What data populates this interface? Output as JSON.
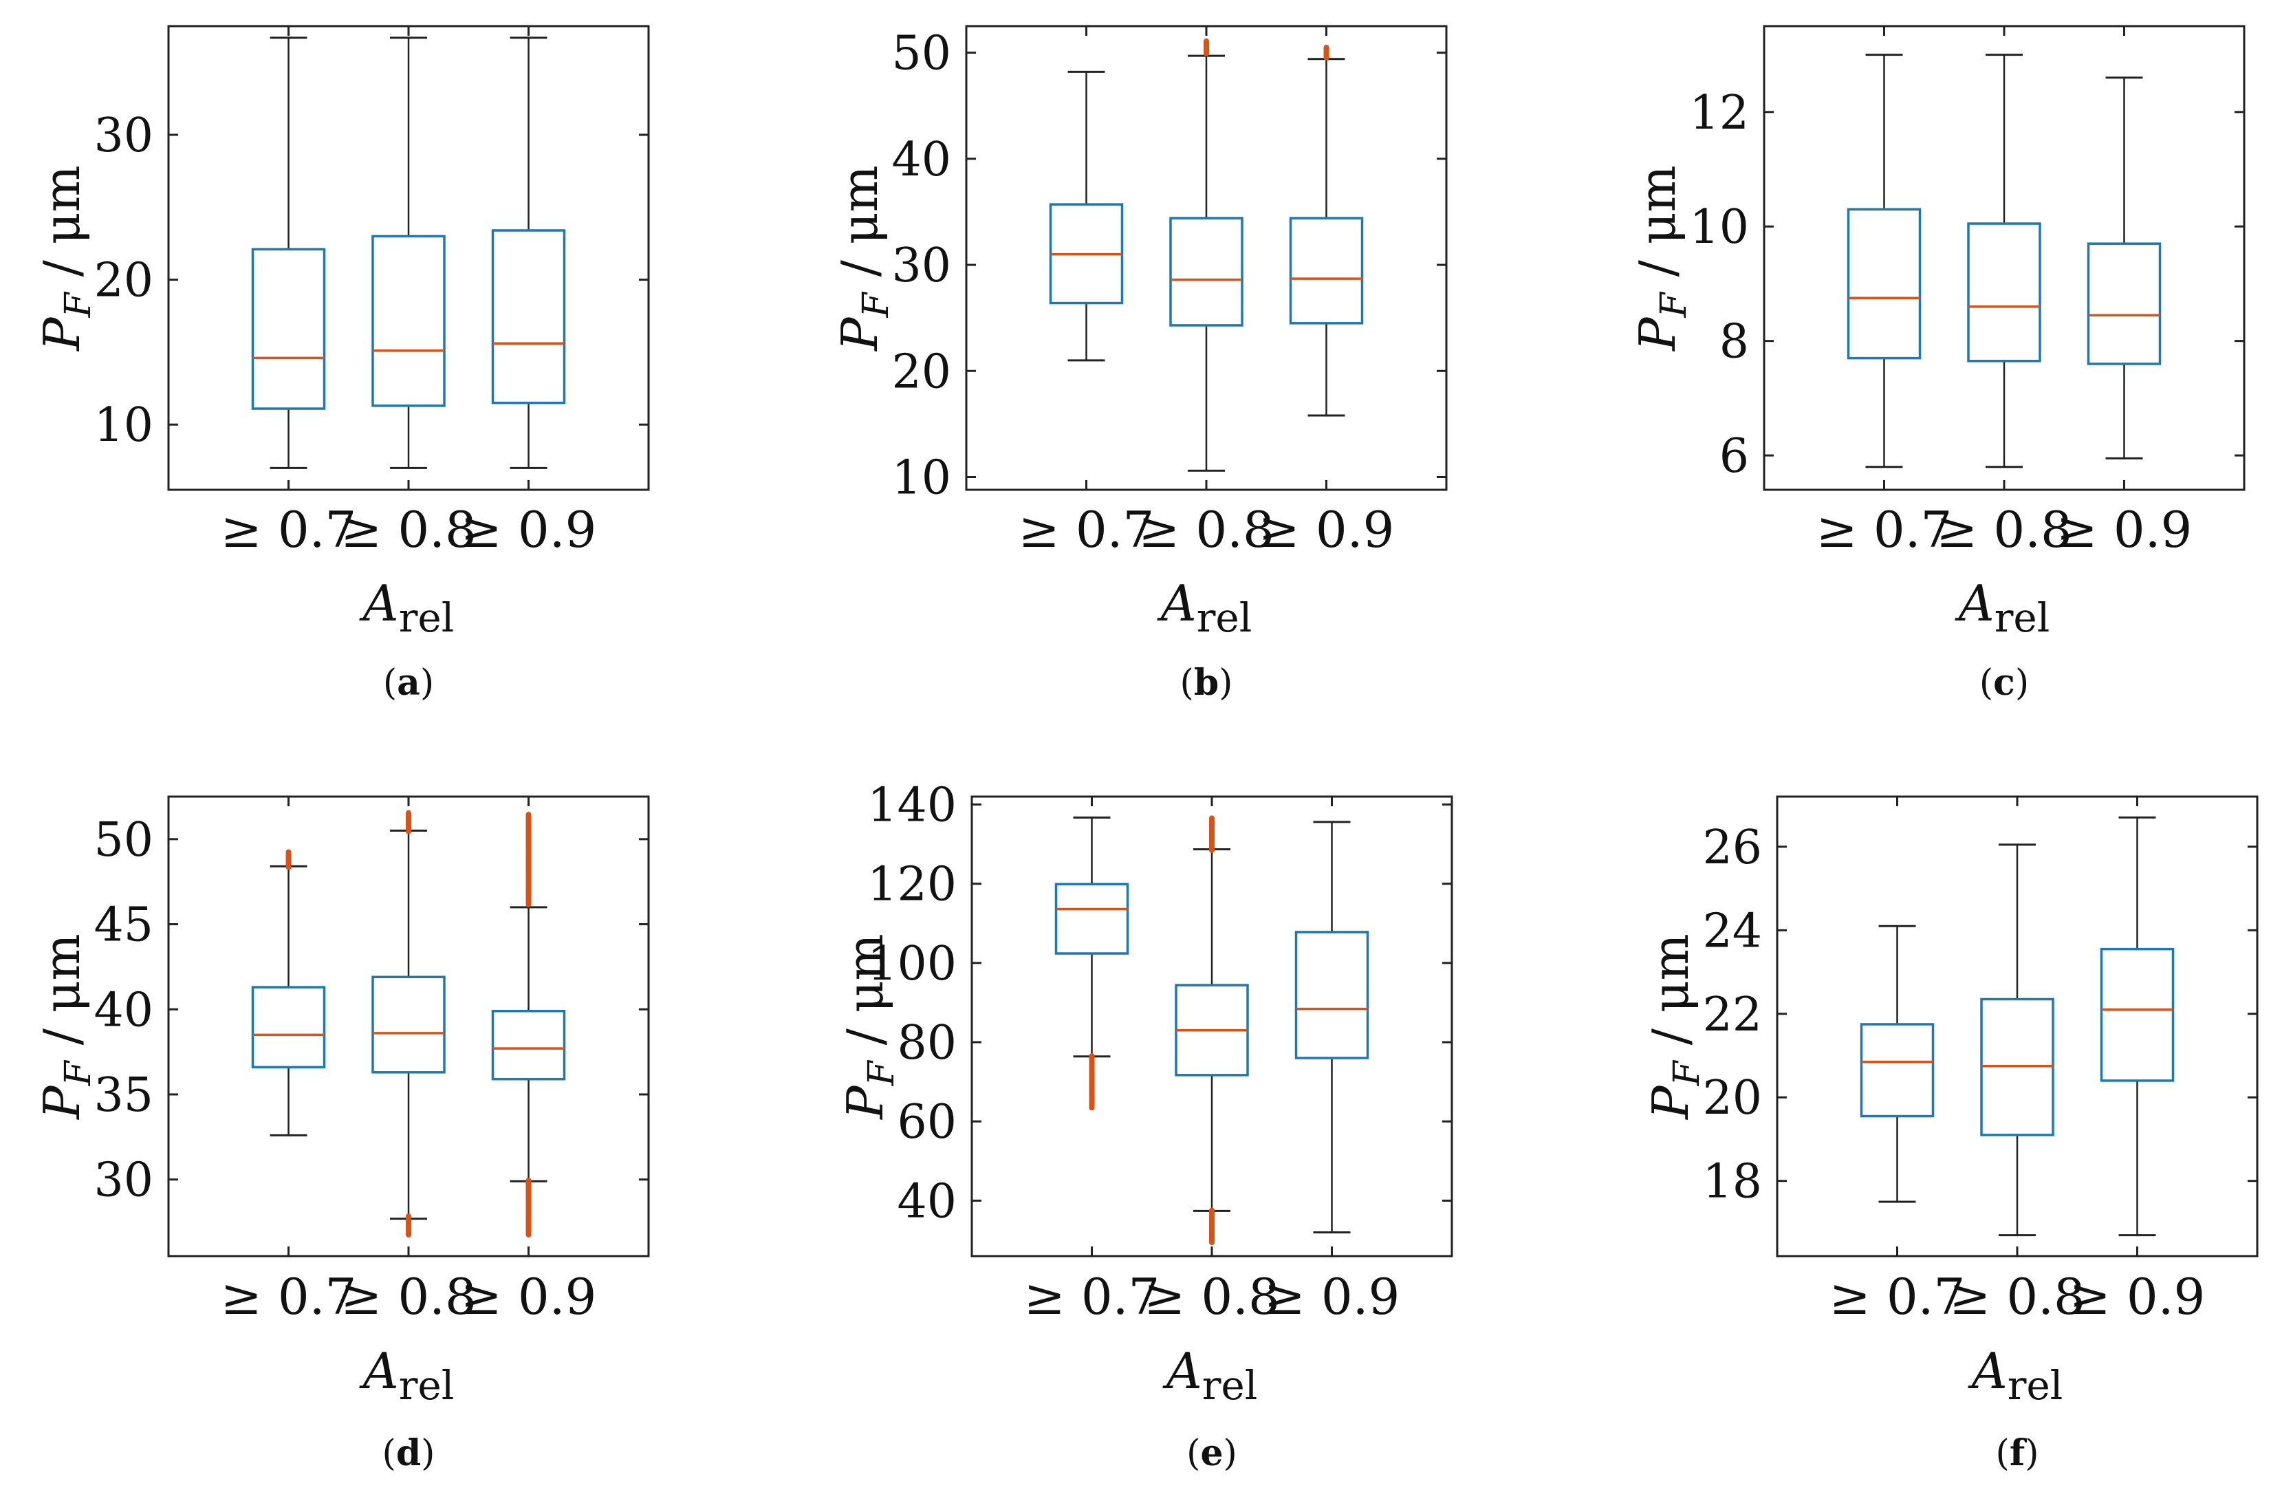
{
  "figure": {
    "colors": {
      "box": "#1f77b4",
      "median": "#d95319",
      "outlier": "#d95319",
      "whisker": "#222222",
      "axes": "#222222"
    }
  },
  "chart_data": [
    {
      "type": "box",
      "panel": "(a)",
      "letter": "a",
      "ylabel_main": "P",
      "ylabel_sub": "F",
      "ylabel_unit": " / μm",
      "xlabel_main": "A",
      "xlabel_sub": "rel",
      "ylim": [
        5.5,
        37.5
      ],
      "yticks": [
        10,
        20,
        30
      ],
      "categories": [
        "≥ 0.7",
        "≥ 0.8",
        "≥ 0.9"
      ],
      "boxes": [
        {
          "whisker_low": 7.0,
          "q1": 11.1,
          "median": 14.6,
          "q3": 22.1,
          "whisker_high": 36.7,
          "outliers": []
        },
        {
          "whisker_low": 7.0,
          "q1": 11.3,
          "median": 15.1,
          "q3": 23.0,
          "whisker_high": 36.7,
          "outliers": []
        },
        {
          "whisker_low": 7.0,
          "q1": 11.5,
          "median": 15.6,
          "q3": 23.4,
          "whisker_high": 36.7,
          "outliers": []
        }
      ]
    },
    {
      "type": "box",
      "panel": "(b)",
      "letter": "b",
      "ylabel_main": "P",
      "ylabel_sub": "F",
      "ylabel_unit": " / μm",
      "xlabel_main": "A",
      "xlabel_sub": "rel",
      "ylim": [
        8.8,
        52.5
      ],
      "yticks": [
        10,
        20,
        30,
        40,
        50
      ],
      "categories": [
        "≥ 0.7",
        "≥ 0.8",
        "≥ 0.9"
      ],
      "boxes": [
        {
          "whisker_low": 21.0,
          "q1": 26.4,
          "median": 31.0,
          "q3": 35.7,
          "whisker_high": 48.2,
          "outliers": []
        },
        {
          "whisker_low": 10.6,
          "q1": 24.3,
          "median": 28.6,
          "q3": 34.4,
          "whisker_high": 49.7,
          "outliers": [
            50.3,
            50.5,
            50.7
          ]
        },
        {
          "whisker_low": 15.8,
          "q1": 24.5,
          "median": 28.7,
          "q3": 34.4,
          "whisker_high": 49.4,
          "outliers": [
            49.9,
            50.1
          ]
        }
      ]
    },
    {
      "type": "box",
      "panel": "(c)",
      "letter": "c",
      "ylabel_main": "P",
      "ylabel_sub": "F",
      "ylabel_unit": " / μm",
      "xlabel_main": "A",
      "xlabel_sub": "rel",
      "ylim": [
        5.4,
        13.5
      ],
      "yticks": [
        6,
        8,
        10,
        12
      ],
      "categories": [
        "≥ 0.7",
        "≥ 0.8",
        "≥ 0.9"
      ],
      "boxes": [
        {
          "whisker_low": 5.8,
          "q1": 7.7,
          "median": 8.75,
          "q3": 10.3,
          "whisker_high": 13.0,
          "outliers": []
        },
        {
          "whisker_low": 5.8,
          "q1": 7.65,
          "median": 8.6,
          "q3": 10.05,
          "whisker_high": 13.0,
          "outliers": []
        },
        {
          "whisker_low": 5.95,
          "q1": 7.6,
          "median": 8.45,
          "q3": 9.7,
          "whisker_high": 12.6,
          "outliers": []
        }
      ]
    },
    {
      "type": "box",
      "panel": "(d)",
      "letter": "d",
      "ylabel_main": "P",
      "ylabel_sub": "F",
      "ylabel_unit": " / μm",
      "xlabel_main": "A",
      "xlabel_sub": "rel",
      "ylim": [
        25.5,
        52.5
      ],
      "yticks": [
        30,
        35,
        40,
        45,
        50
      ],
      "categories": [
        "≥ 0.7",
        "≥ 0.8",
        "≥ 0.9"
      ],
      "boxes": [
        {
          "whisker_low": 32.6,
          "q1": 36.6,
          "median": 38.5,
          "q3": 41.3,
          "whisker_high": 48.4,
          "outliers": [
            48.6,
            48.8,
            49.0
          ]
        },
        {
          "whisker_low": 27.7,
          "q1": 36.3,
          "median": 38.6,
          "q3": 41.9,
          "whisker_high": 50.5,
          "outliers": [
            27.0,
            27.2,
            27.4,
            27.6,
            50.7,
            50.9,
            51.1,
            51.3
          ]
        },
        {
          "whisker_low": 29.9,
          "q1": 35.9,
          "median": 37.7,
          "q3": 39.9,
          "whisker_high": 46.0,
          "outliers": [
            27.0,
            27.3,
            27.6,
            27.9,
            28.2,
            28.5,
            28.8,
            29.1,
            29.4,
            29.7,
            46.4,
            46.8,
            47.2,
            47.6,
            48.0,
            48.4,
            48.8,
            49.2,
            49.6,
            50.0,
            50.4,
            50.8,
            51.2
          ]
        }
      ]
    },
    {
      "type": "box",
      "panel": "(e)",
      "letter": "e",
      "ylabel_main": "P",
      "ylabel_sub": "F",
      "ylabel_unit": " / μm",
      "xlabel_main": "A",
      "xlabel_sub": "rel",
      "ylim": [
        26.0,
        142.0
      ],
      "yticks": [
        40,
        60,
        80,
        100,
        120,
        140
      ],
      "categories": [
        "≥ 0.7",
        "≥ 0.8",
        "≥ 0.9"
      ],
      "boxes": [
        {
          "whisker_low": 76.4,
          "q1": 102.4,
          "median": 113.6,
          "q3": 119.9,
          "whisker_high": 136.7,
          "outliers": [
            64.5,
            65.5,
            66.5,
            67.5,
            68.5,
            69.5,
            70.5,
            71.5,
            72.5,
            73.5,
            74.5,
            75.5
          ]
        },
        {
          "whisker_low": 37.4,
          "q1": 71.7,
          "median": 83.0,
          "q3": 94.4,
          "whisker_high": 128.7,
          "outliers": [
            30.5,
            31.5,
            32.5,
            33.5,
            34.5,
            35.5,
            36.5,
            129.5,
            130.5,
            131.5,
            132.5,
            133.5,
            134.5,
            135.5
          ]
        },
        {
          "whisker_low": 32.0,
          "q1": 76.0,
          "median": 88.4,
          "q3": 107.8,
          "whisker_high": 135.6,
          "outliers": []
        }
      ]
    },
    {
      "type": "box",
      "panel": "(f)",
      "letter": "f",
      "ylabel_main": "P",
      "ylabel_sub": "F",
      "ylabel_unit": " / μm",
      "xlabel_main": "A",
      "xlabel_sub": "rel",
      "ylim": [
        16.2,
        27.2
      ],
      "yticks": [
        18,
        20,
        22,
        24,
        26
      ],
      "categories": [
        "≥ 0.7",
        "≥ 0.8",
        "≥ 0.9"
      ],
      "boxes": [
        {
          "whisker_low": 17.5,
          "q1": 19.55,
          "median": 20.85,
          "q3": 21.75,
          "whisker_high": 24.1,
          "outliers": []
        },
        {
          "whisker_low": 16.7,
          "q1": 19.1,
          "median": 20.75,
          "q3": 22.35,
          "whisker_high": 26.05,
          "outliers": []
        },
        {
          "whisker_low": 16.7,
          "q1": 20.4,
          "median": 22.1,
          "q3": 23.55,
          "whisker_high": 26.7,
          "outliers": []
        }
      ]
    }
  ]
}
